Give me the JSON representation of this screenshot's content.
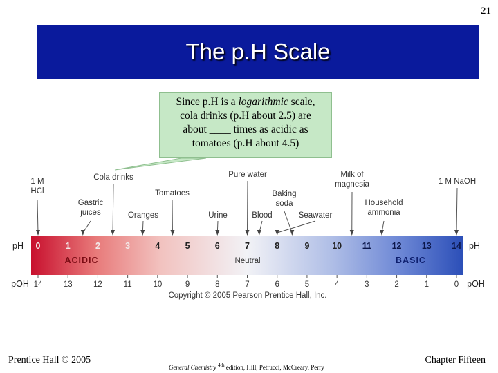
{
  "slide_number": "21",
  "title": "The p.H Scale",
  "callout": {
    "line1": "Since p.H is a",
    "emph": "logarithmic",
    "line1_end": "scale,",
    "line2": "cola drinks (p.H about 2.5) are",
    "line3": "about ____ times as acidic as",
    "line4": "tomatoes (p.H about 4.5)"
  },
  "scale": {
    "ph_label": "pH",
    "poh_label": "pOH",
    "acidic_label": "ACIDIC",
    "neutral_label": "Neutral",
    "basic_label": "BASIC",
    "ph_values": [
      "0",
      "1",
      "2",
      "3",
      "4",
      "5",
      "6",
      "7",
      "8",
      "9",
      "10",
      "11",
      "12",
      "13",
      "14"
    ],
    "poh_values": [
      "14",
      "13",
      "12",
      "11",
      "10",
      "9",
      "8",
      "7",
      "6",
      "5",
      "4",
      "3",
      "2",
      "1",
      "0"
    ],
    "colors": {
      "acid": "#c8102e",
      "neutral": "#f2f2f6",
      "base": "#2c4fb8"
    }
  },
  "substances": [
    {
      "name_line1": "1 M",
      "name_line2": "HCl",
      "ph": 0
    },
    {
      "name_line1": "Gastric",
      "name_line2": "juices",
      "ph": 1.5
    },
    {
      "name_line1": "Cola drinks",
      "name_line2": "",
      "ph": 2.5
    },
    {
      "name_line1": "Oranges",
      "name_line2": "",
      "ph": 3.5
    },
    {
      "name_line1": "Tomatoes",
      "name_line2": "",
      "ph": 4.5
    },
    {
      "name_line1": "Urine",
      "name_line2": "",
      "ph": 6
    },
    {
      "name_line1": "Pure water",
      "name_line2": "",
      "ph": 7
    },
    {
      "name_line1": "Blood",
      "name_line2": "",
      "ph": 7.4
    },
    {
      "name_line1": "Baking",
      "name_line2": "soda",
      "ph": 8.5
    },
    {
      "name_line1": "Seawater",
      "name_line2": "",
      "ph": 8
    },
    {
      "name_line1": "Milk of",
      "name_line2": "magnesia",
      "ph": 10.5
    },
    {
      "name_line1": "Household",
      "name_line2": "ammonia",
      "ph": 11.5
    },
    {
      "name_line1": "1 M NaOH",
      "name_line2": "",
      "ph": 14
    }
  ],
  "copyright": "Copyright © 2005 Pearson Prentice Hall, Inc.",
  "footer": {
    "left": "Prentice Hall © 2005",
    "center_italic": "General Chemistry",
    "center_sup": "4th",
    "center_rest": "edition, Hill, Petrucci, McCreary, Perry",
    "right": "Chapter Fifteen"
  }
}
